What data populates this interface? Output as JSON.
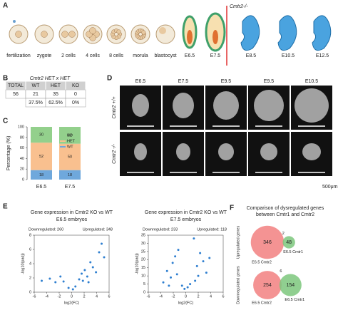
{
  "panel_a": {
    "letter": "A",
    "stages": [
      "fertilization",
      "zygote",
      "2 cells",
      "4 cells",
      "8 cells",
      "morula",
      "blastocyst",
      "E6.5",
      "E7.5",
      "E8.5",
      "E10.5",
      "E12.5"
    ],
    "knockout_label": "Cmtr2-/-"
  },
  "panel_b": {
    "letter": "B",
    "title": "Cmtr2 HET x HET",
    "header": [
      "TOTAL",
      "WT",
      "HET",
      "KO"
    ],
    "counts": [
      "56",
      "21",
      "35",
      "0"
    ],
    "percents": [
      "37.5%",
      "62.5%",
      "0%"
    ]
  },
  "panel_c": {
    "letter": "C",
    "chart_data": {
      "type": "bar",
      "stacked": true,
      "categories": [
        "E6.5",
        "E7.5"
      ],
      "series": [
        {
          "name": "WT",
          "color": "#6fa8dc",
          "values": [
            18,
            18
          ]
        },
        {
          "name": "HET",
          "color": "#f9c08f",
          "values": [
            52,
            50
          ]
        },
        {
          "name": "KO",
          "color": "#93d08c",
          "values": [
            30,
            32
          ]
        }
      ],
      "ylim": [
        0,
        100
      ],
      "yticks": [
        0,
        20,
        40,
        60,
        80,
        100
      ],
      "ylabel": "Percentage (%)"
    }
  },
  "panel_d": {
    "letter": "D",
    "columns": [
      "E6.5",
      "E7.5",
      "E9.5",
      "E9.5",
      "E10.5"
    ],
    "rows": [
      "Cmtr2 +/+",
      "Cmtr2 -/-"
    ],
    "scale_label": "500μm"
  },
  "panel_e": {
    "letter": "E",
    "plots": [
      {
        "type": "scatter",
        "title": "Gene expression in Cmtr2 KO vs WT",
        "subtitle": "E6.5 embryos",
        "down_label": "Downregulated: 260",
        "up_label": "Upregulated: 348",
        "xlabel": "log2(FC)",
        "ylabel": "-log10(padj)",
        "color": "#2f7fd0",
        "x": [
          -4.8,
          -3.5,
          -2.6,
          -1.8,
          -1.3,
          -0.5,
          0.2,
          0.6,
          1.2,
          1.6,
          2.1,
          2.5,
          3.0,
          3.4,
          3.9,
          4.4,
          4.8,
          5.2,
          1.8,
          2.7
        ],
        "y": [
          1.6,
          1.9,
          1.4,
          2.2,
          1.5,
          0.6,
          0.4,
          0.8,
          1.8,
          2.6,
          3.1,
          2.2,
          4.2,
          3.5,
          2.8,
          5.6,
          6.8,
          4.9,
          1.6,
          1.4
        ],
        "xlim": [
          -6,
          6
        ],
        "ylim": [
          0,
          8
        ],
        "xticks": [
          -6,
          -4,
          -2,
          0,
          2,
          4,
          6
        ],
        "yticks": [
          0,
          2,
          4,
          6,
          8
        ]
      },
      {
        "type": "scatter",
        "title": "Gene expression in Cmtr2 KO vs WT",
        "subtitle": "E7.5 embryos",
        "down_label": "Downregulated: 233",
        "up_label": "Upregulated: 118",
        "xlabel": "log2(FC)",
        "ylabel": "-log10(padj)",
        "color": "#2f7fd0",
        "x": [
          -3.6,
          -3.0,
          -2.4,
          -2.1,
          -1.7,
          -1.4,
          -0.6,
          -0.2,
          0.3,
          0.7,
          1.3,
          1.8,
          2.3,
          2.8,
          3.3,
          3.8,
          1.5,
          -1.2,
          2.0,
          -2.7
        ],
        "y": [
          6,
          13,
          9,
          18,
          22,
          11,
          4,
          2,
          3,
          5,
          33,
          16,
          24,
          19,
          12,
          21,
          7,
          26,
          10,
          4
        ],
        "xlim": [
          -6,
          6
        ],
        "ylim": [
          0,
          35
        ],
        "xticks": [
          -6,
          -4,
          -2,
          0,
          2,
          4,
          6
        ],
        "yticks": [
          0,
          5,
          10,
          15,
          20,
          25,
          30,
          35
        ]
      }
    ]
  },
  "panel_f": {
    "letter": "F",
    "title": "Comparison of dysregulated genes",
    "subtitle": "between Cmtr1 and Cmtr2",
    "venns": [
      {
        "label": "Upregulated genes",
        "left": 346,
        "overlap": 2,
        "right": 48,
        "left_name": "E6.5 Cmtr2",
        "right_name": "E6.5 Cmtr1"
      },
      {
        "label": "Downregulated genes",
        "left": 254,
        "overlap": 6,
        "right": 154,
        "left_name": "E6.5 Cmtr2",
        "right_name": "E6.5 Cmtr1"
      }
    ]
  }
}
